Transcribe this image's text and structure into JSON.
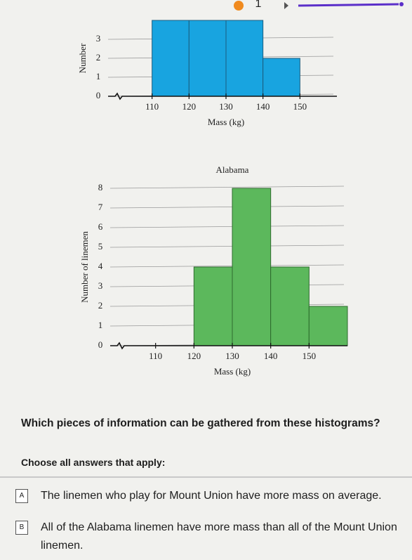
{
  "header": {
    "question_number": "1"
  },
  "chart_data": [
    {
      "type": "histogram",
      "ylabel": "Number",
      "xlabel": "Mass (kg)",
      "bins": [
        110,
        120,
        130,
        140,
        150
      ],
      "values": [
        4,
        4,
        4,
        2
      ],
      "color": "#18a4e0",
      "xlim": [
        100,
        160
      ],
      "xticks": [
        110,
        120,
        130,
        140,
        150
      ],
      "ylim": [
        0,
        4
      ],
      "yticks": [
        0,
        1,
        2,
        3
      ],
      "grid": true
    },
    {
      "type": "histogram",
      "title": "Alabama",
      "ylabel": "Number of linemen",
      "xlabel": "Mass (kg)",
      "bins": [
        120,
        130,
        140,
        150,
        160
      ],
      "values": [
        4,
        8,
        4,
        2
      ],
      "color": "#5cb85c",
      "xlim": [
        100,
        160
      ],
      "xticks": [
        110,
        120,
        130,
        140,
        150
      ],
      "ylim": [
        0,
        8
      ],
      "yticks": [
        0,
        1,
        2,
        3,
        4,
        5,
        6,
        7,
        8
      ],
      "grid": true
    }
  ],
  "question": "Which pieces of information can be gathered from these histograms?",
  "instruction": "Choose all answers that apply:",
  "choices": [
    {
      "letter": "A",
      "text": "The linemen who play for Mount Union have more mass on average."
    },
    {
      "letter": "B",
      "text": "All of the Alabama linemen have more mass than all of the Mount Union linemen."
    }
  ]
}
